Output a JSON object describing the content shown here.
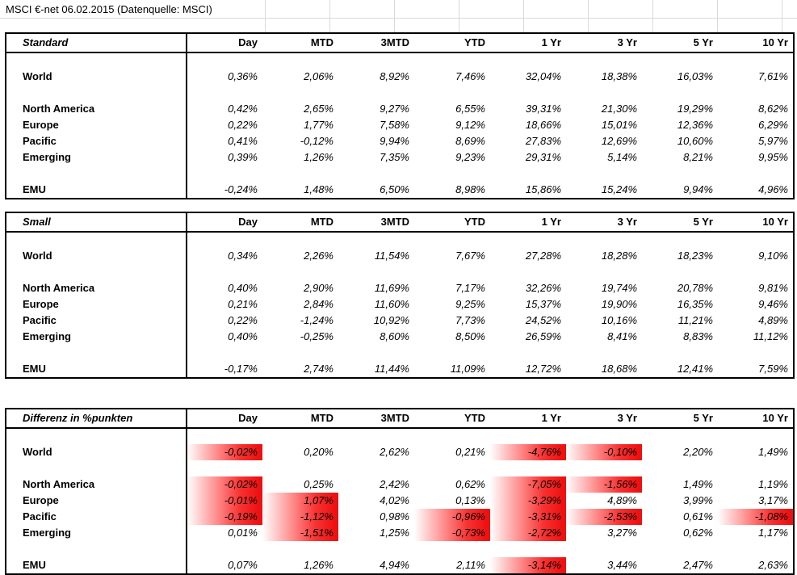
{
  "title": "MSCI €-net 06.02.2015 (Datenquelle: MSCI)",
  "columns": [
    "Day",
    "MTD",
    "3MTD",
    "YTD",
    "1 Yr",
    "3 Yr",
    "5 Yr",
    "10 Yr"
  ],
  "colors": {
    "highlight_red": "#ee1111"
  },
  "tables": [
    {
      "name": "Standard",
      "rows": [
        null,
        {
          "label": "World",
          "values": [
            "0,36%",
            "2,06%",
            "8,92%",
            "7,46%",
            "32,04%",
            "18,38%",
            "16,03%",
            "7,61%"
          ]
        },
        null,
        {
          "label": "North America",
          "values": [
            "0,42%",
            "2,65%",
            "9,27%",
            "6,55%",
            "39,31%",
            "21,30%",
            "19,29%",
            "8,62%"
          ]
        },
        {
          "label": "Europe",
          "values": [
            "0,22%",
            "1,77%",
            "7,58%",
            "9,12%",
            "18,66%",
            "15,01%",
            "12,36%",
            "6,29%"
          ]
        },
        {
          "label": "Pacific",
          "values": [
            "0,41%",
            "-0,12%",
            "9,94%",
            "8,69%",
            "27,83%",
            "12,69%",
            "10,60%",
            "5,97%"
          ]
        },
        {
          "label": "Emerging",
          "values": [
            "0,39%",
            "1,26%",
            "7,35%",
            "9,23%",
            "29,31%",
            "5,14%",
            "8,21%",
            "9,95%"
          ]
        },
        null,
        {
          "label": "EMU",
          "values": [
            "-0,24%",
            "1,48%",
            "6,50%",
            "8,98%",
            "15,86%",
            "15,24%",
            "9,94%",
            "4,96%"
          ]
        }
      ]
    },
    {
      "name": "Small",
      "rows": [
        null,
        {
          "label": "World",
          "values": [
            "0,34%",
            "2,26%",
            "11,54%",
            "7,67%",
            "27,28%",
            "18,28%",
            "18,23%",
            "9,10%"
          ]
        },
        null,
        {
          "label": "North America",
          "values": [
            "0,40%",
            "2,90%",
            "11,69%",
            "7,17%",
            "32,26%",
            "19,74%",
            "20,78%",
            "9,81%"
          ]
        },
        {
          "label": "Europe",
          "values": [
            "0,21%",
            "2,84%",
            "11,60%",
            "9,25%",
            "15,37%",
            "19,90%",
            "16,35%",
            "9,46%"
          ]
        },
        {
          "label": "Pacific",
          "values": [
            "0,22%",
            "-1,24%",
            "10,92%",
            "7,73%",
            "24,52%",
            "10,16%",
            "11,21%",
            "4,89%"
          ]
        },
        {
          "label": "Emerging",
          "values": [
            "0,40%",
            "-0,25%",
            "8,60%",
            "8,50%",
            "26,59%",
            "8,41%",
            "8,83%",
            "11,12%"
          ]
        },
        null,
        {
          "label": "EMU",
          "values": [
            "-0,17%",
            "2,74%",
            "11,44%",
            "11,09%",
            "12,72%",
            "18,68%",
            "12,41%",
            "7,59%"
          ]
        }
      ]
    },
    {
      "name": "Differenz in %punkten",
      "rows": [
        null,
        {
          "label": "World",
          "values": [
            "-0,02%",
            "0,20%",
            "2,62%",
            "0,21%",
            "-4,76%",
            "-0,10%",
            "2,20%",
            "1,49%"
          ],
          "hl": [
            0,
            4,
            5
          ]
        },
        null,
        {
          "label": "North America",
          "values": [
            "-0,02%",
            "0,25%",
            "2,42%",
            "0,62%",
            "-7,05%",
            "-1,56%",
            "1,49%",
            "1,19%"
          ],
          "hl": [
            0,
            4,
            5
          ]
        },
        {
          "label": "Europe",
          "values": [
            "-0,01%",
            "1,07%",
            "4,02%",
            "0,13%",
            "-3,29%",
            "4,89%",
            "3,99%",
            "3,17%"
          ],
          "hl": [
            0,
            1,
            4
          ]
        },
        {
          "label": "Pacific",
          "values": [
            "-0,19%",
            "-1,12%",
            "0,98%",
            "-0,96%",
            "-3,31%",
            "-2,53%",
            "0,61%",
            "-1,08%"
          ],
          "hl": [
            0,
            1,
            3,
            4,
            5,
            7
          ]
        },
        {
          "label": "Emerging",
          "values": [
            "0,01%",
            "-1,51%",
            "1,25%",
            "-0,73%",
            "-2,72%",
            "3,27%",
            "0,62%",
            "1,17%"
          ],
          "hl": [
            1,
            3,
            4
          ]
        },
        null,
        {
          "label": "EMU",
          "values": [
            "0,07%",
            "1,26%",
            "4,94%",
            "2,11%",
            "-3,14%",
            "3,44%",
            "2,47%",
            "2,63%"
          ],
          "hl": [
            4
          ]
        }
      ]
    }
  ]
}
